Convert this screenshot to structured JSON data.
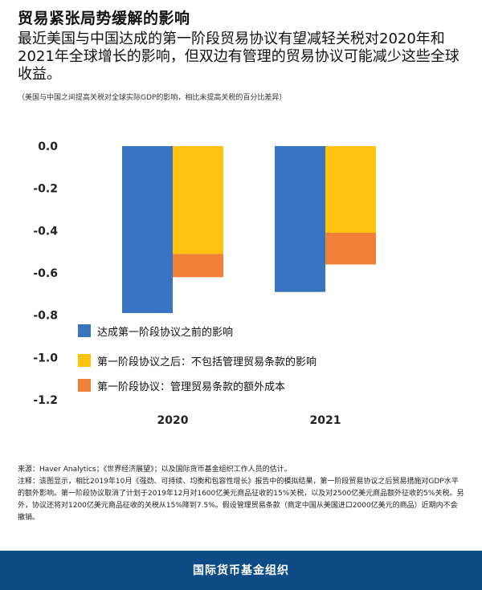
{
  "title": "贸易紧张局势缓解的影响",
  "subtitle": "最近美国与中国达成的第一阶段贸易协议有望减轻关税对2020年和2021年全球增长的影响，但双边有管理的贸易协议可能减少这些全球收益。",
  "caption": "（美国与中国之间提高关税对全球实际GDP的影响，相比未提高关税的百分比差异）",
  "chart_data": {
    "type": "bar",
    "title": "",
    "xlabel": "",
    "ylabel": "",
    "categories": [
      "2020",
      "2021"
    ],
    "ylim": [
      -1.2,
      0.0
    ],
    "yticks": [
      "0.0",
      "-0.2",
      "-0.4",
      "-0.6",
      "-0.8",
      "-1.0",
      "-1.2"
    ],
    "ytick_values": [
      0.0,
      -0.2,
      -0.4,
      -0.6,
      -0.8,
      -1.0,
      -1.2
    ],
    "grid": false,
    "legend_position": "bottom-left-inside",
    "series": [
      {
        "name": "达成第一阶段协议之前的影响",
        "color": "#3a73c2",
        "values": [
          -0.79,
          -0.69
        ],
        "stack": "a"
      },
      {
        "name": "第一阶段协议之后：不包括管理贸易条款的影响",
        "color": "#ffc20e",
        "values": [
          -0.51,
          -0.41
        ],
        "stack": "b"
      },
      {
        "name": "第一阶段协议：管理贸易条款的额外成本",
        "color": "#ef8035",
        "values": [
          -0.11,
          -0.15
        ],
        "stack": "b"
      }
    ]
  },
  "notes": {
    "source": "来源：Haver Analytics；《世界经济展望》；以及国际货币基金组织工作人员的估计。",
    "note": "注释：该图显示，相比2019年10月《强劲、可持续、均衡和包容性增长》报告中的模拟结果，第一阶段贸易协议之后贸易措施对GDP水平的额外影响。第一阶段协议取消了计划于2019年12月对1600亿美元商品征收的15%关税，以及对2500亿美元商品额外征收的5%关税。另外，协议还将对1200亿美元商品征收的关税从15%降到7.5%。假设管理贸易条款（商定中国从美国进口2000亿美元的商品）近期内不会撤销。"
  },
  "footer": {
    "org": "国际货币基金组织"
  }
}
